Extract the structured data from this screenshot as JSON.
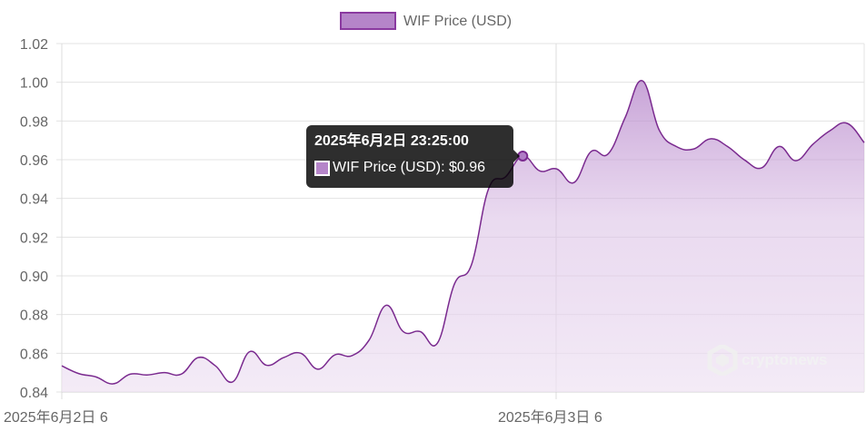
{
  "chart_data": {
    "type": "area",
    "legend": {
      "label": "WIF Price (USD)",
      "position": "top"
    },
    "colors": {
      "line": "#7a2a8f",
      "fill": "#b07cc6",
      "swatch_fill": "#b585c9",
      "swatch_border": "#8a3aa0"
    },
    "ylim": [
      0.84,
      1.02
    ],
    "y_ticks": [
      "0.84",
      "0.86",
      "0.88",
      "0.90",
      "0.92",
      "0.94",
      "0.96",
      "0.98",
      "1.00",
      "1.02"
    ],
    "x_tick_labels": [
      "2025年6月2日 6",
      "2025年6月3日 6"
    ],
    "grid": true,
    "series": [
      {
        "name": "WIF Price (USD)",
        "values": [
          0.8535,
          0.8495,
          0.8478,
          0.8442,
          0.8492,
          0.8488,
          0.85,
          0.8492,
          0.8578,
          0.8535,
          0.8452,
          0.8608,
          0.8538,
          0.8578,
          0.86,
          0.8518,
          0.8592,
          0.8588,
          0.8668,
          0.8848,
          0.8712,
          0.8712,
          0.8652,
          0.8958,
          0.9058,
          0.945,
          0.9512,
          0.9619,
          0.9542,
          0.9552,
          0.9482,
          0.9642,
          0.963,
          0.9818,
          1.0008,
          0.9752,
          0.9668,
          0.9655,
          0.9708,
          0.9668,
          0.9598,
          0.9558,
          0.9668,
          0.9595,
          0.968,
          0.975,
          0.9788,
          0.9688
        ]
      }
    ],
    "tooltip": {
      "title": "2025年6月2日 23:25:00",
      "label": "WIF Price (USD): $0.96",
      "point_index": 27
    }
  },
  "watermark": {
    "text": "cryptonews",
    "icon": "cryptonews-logo-icon"
  }
}
